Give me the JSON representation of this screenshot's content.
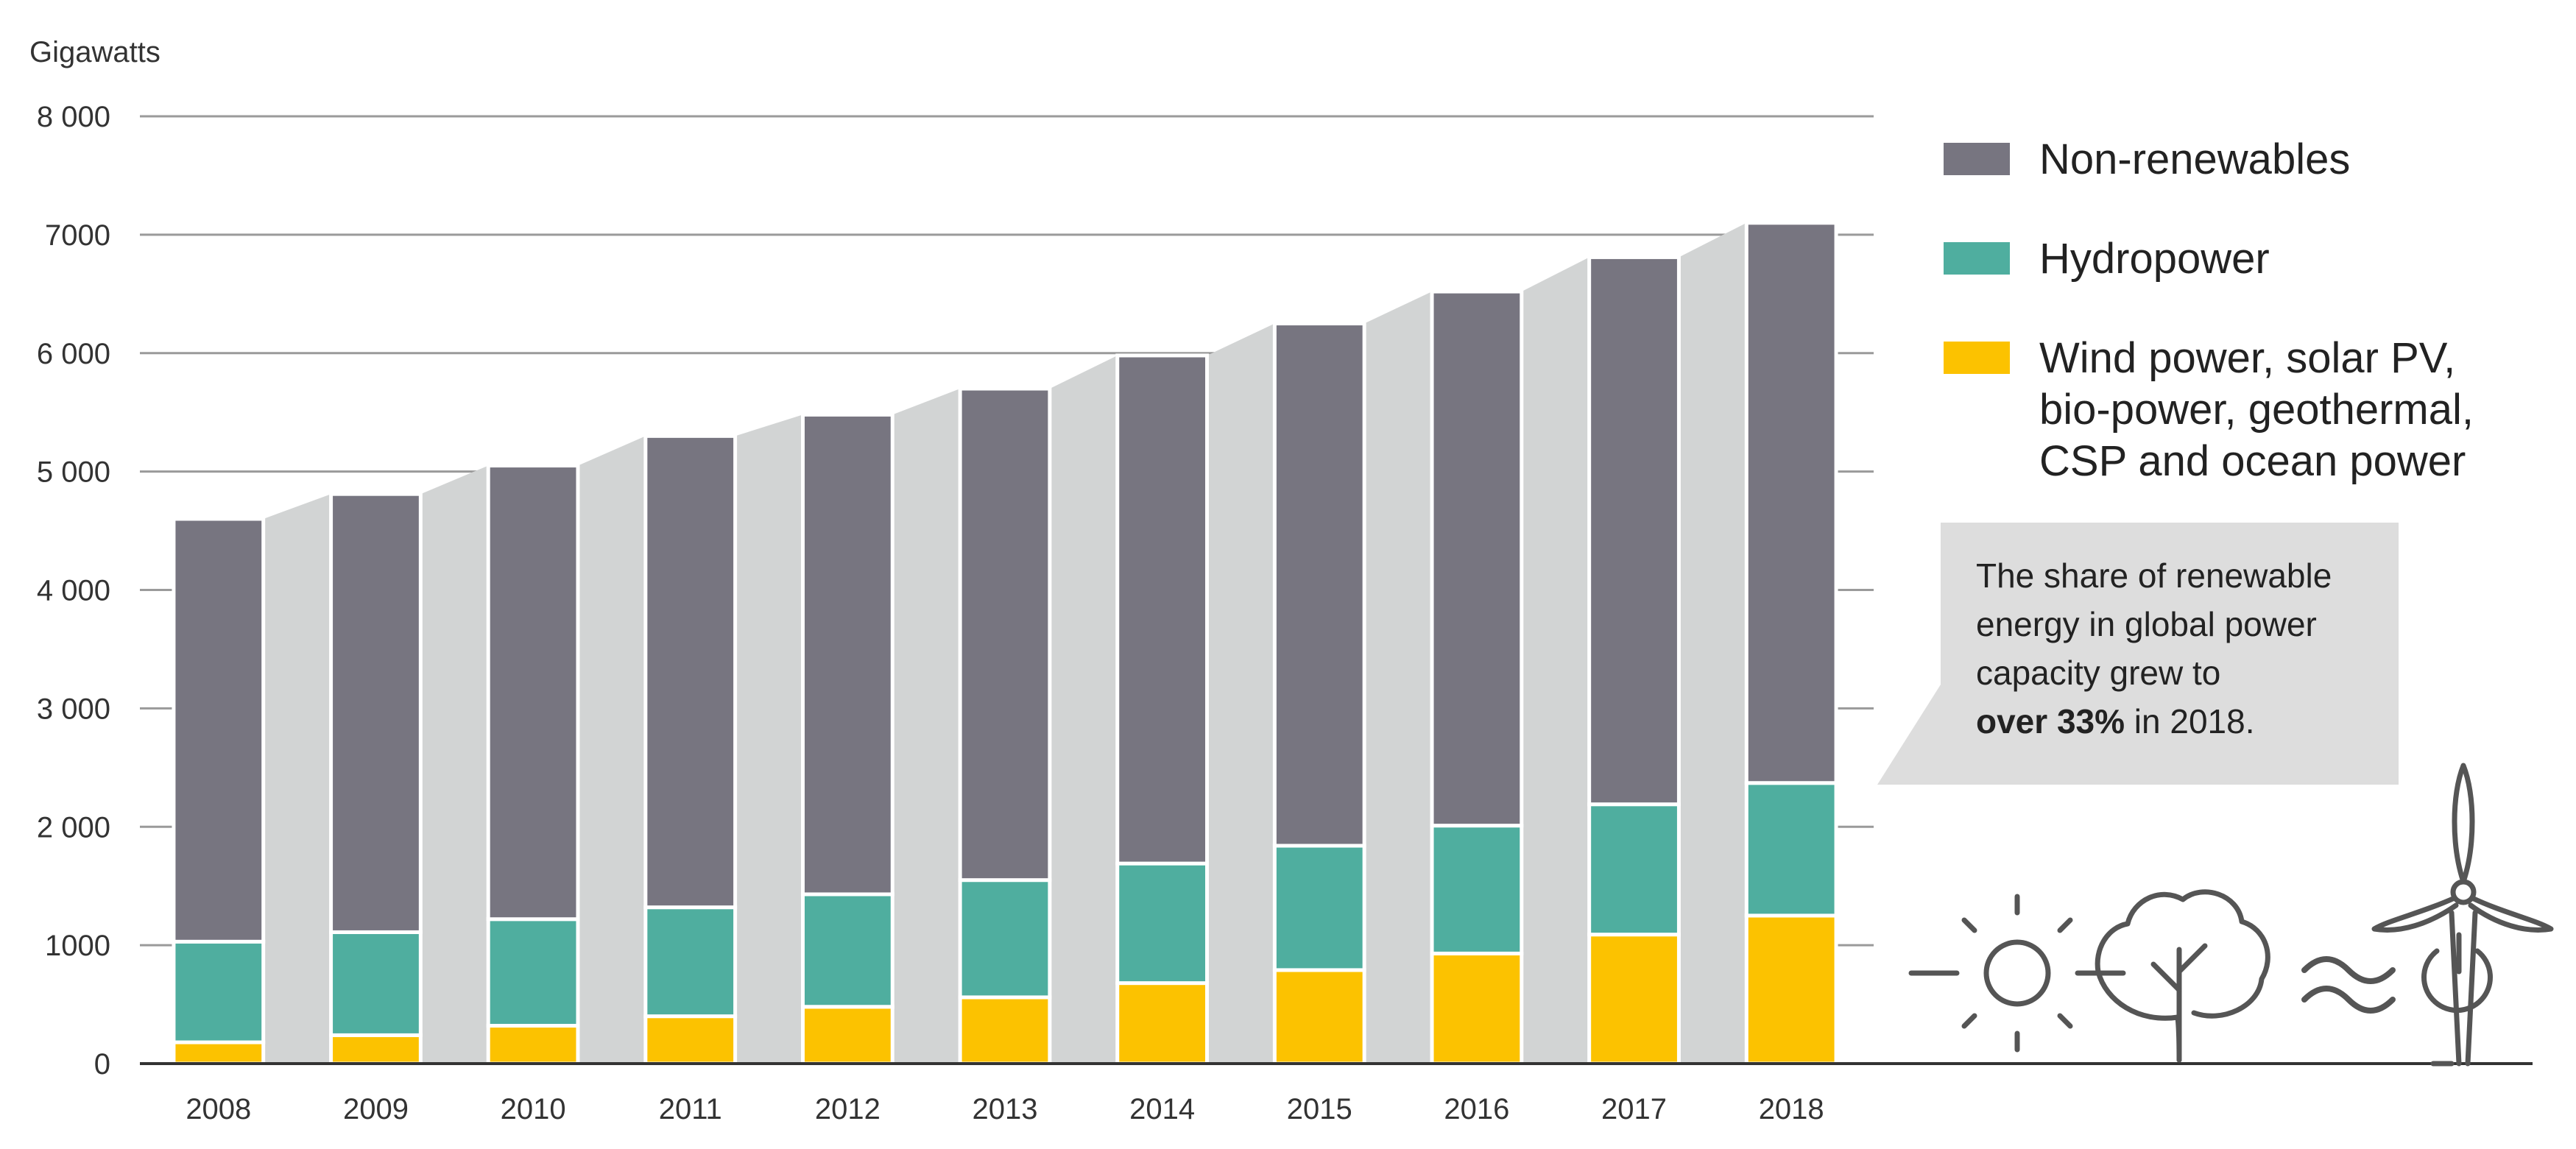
{
  "chart_data": {
    "type": "bar",
    "stacked": true,
    "ylabel": "Gigawatts",
    "ylim": [
      0,
      8000
    ],
    "yticks": [
      "0",
      "1000",
      "2 000",
      "3 000",
      "4 000",
      "5 000",
      "6 000",
      "7000",
      "8 000"
    ],
    "ytick_values": [
      0,
      1000,
      2000,
      3000,
      4000,
      5000,
      6000,
      7000,
      8000
    ],
    "categories": [
      "2008",
      "2009",
      "2010",
      "2011",
      "2012",
      "2013",
      "2014",
      "2015",
      "2016",
      "2017",
      "2018"
    ],
    "series": [
      {
        "name": "Wind power, solar PV, bio-power, geothermal, CSP and ocean power",
        "name_lines": [
          "Wind power, solar PV,",
          "bio-power, geothermal,",
          "CSP and ocean power"
        ],
        "color": "#fcc200",
        "values": [
          180,
          240,
          320,
          400,
          480,
          560,
          680,
          790,
          930,
          1090,
          1250
        ]
      },
      {
        "name": "Hydropower",
        "color": "#4fae9f",
        "values": [
          850,
          870,
          900,
          920,
          950,
          990,
          1010,
          1050,
          1080,
          1100,
          1120
        ]
      },
      {
        "name": "Non-renewables",
        "color": "#777580",
        "values": [
          3570,
          3700,
          3830,
          3980,
          4050,
          4150,
          4290,
          4410,
          4510,
          4620,
          4730
        ]
      }
    ],
    "totals": [
      4600,
      4810,
      5050,
      5300,
      5480,
      5700,
      5980,
      6250,
      6520,
      6810,
      7100
    ],
    "legend_order": [
      2,
      1,
      0
    ],
    "legend_position": "top-right",
    "grid": true
  },
  "callout": {
    "lines": [
      "The share of renewable",
      "energy in global power",
      "capacity grew to"
    ],
    "last_line_bold": "over 33%",
    "last_line_rest": " in 2018."
  },
  "colors": {
    "background_band": "#d2d4d4",
    "grid": "#9a9a9a",
    "axis": "#333333",
    "callout_bg": "#dddddd",
    "icons": "#555555"
  }
}
